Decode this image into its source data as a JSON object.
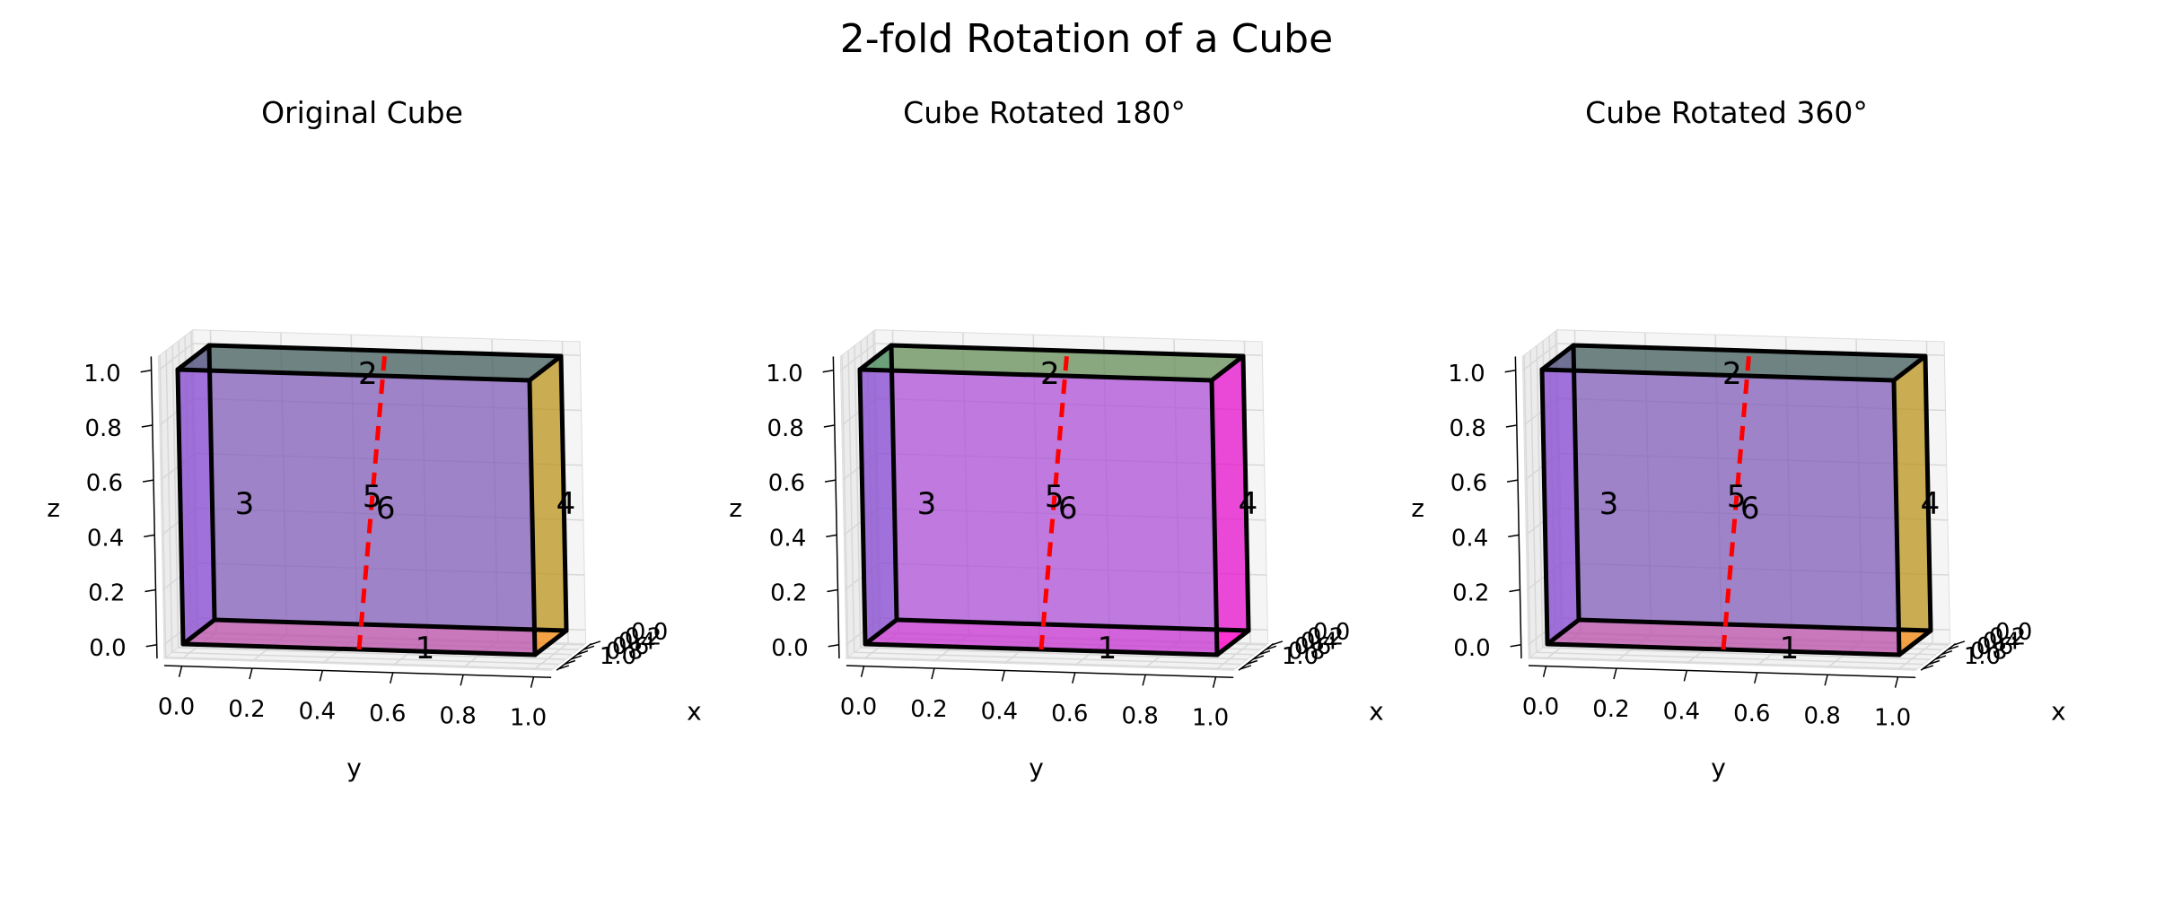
{
  "title": "2-fold Rotation of a Cube",
  "colors": {
    "red": "#d9534f",
    "orange": "#ffa500",
    "blue": "#3a3ac8",
    "teal": "#2f8080",
    "magenta": "#ff00c8",
    "green": "#4fae2a",
    "gray": "#5a5a5a",
    "violet": "#b05ad8",
    "axis_line": "#ff0000"
  },
  "panels": [
    {
      "title": "Original Cube",
      "faces": [
        {
          "label": "1",
          "color": "red"
        },
        {
          "label": "2",
          "color": "gray"
        },
        {
          "label": "3",
          "color": "blue"
        },
        {
          "label": "4",
          "color": "orange"
        },
        {
          "label": "5",
          "color": "violet"
        },
        {
          "label": "6",
          "color": "teal"
        }
      ]
    },
    {
      "title": "Cube Rotated 180°",
      "faces": [
        {
          "label": "1",
          "color": "magenta"
        },
        {
          "label": "2",
          "color": "green"
        },
        {
          "label": "3",
          "color": "blue"
        },
        {
          "label": "4",
          "color": "magenta"
        },
        {
          "label": "5",
          "color": "violet"
        },
        {
          "label": "6",
          "color": "violet"
        }
      ]
    },
    {
      "title": "Cube Rotated 360°",
      "faces": [
        {
          "label": "1",
          "color": "red"
        },
        {
          "label": "2",
          "color": "gray"
        },
        {
          "label": "3",
          "color": "blue"
        },
        {
          "label": "4",
          "color": "orange"
        },
        {
          "label": "5",
          "color": "violet"
        },
        {
          "label": "6",
          "color": "teal"
        }
      ]
    }
  ],
  "axes": {
    "x_label": "x",
    "y_label": "y",
    "z_label": "z",
    "x_ticks": [
      "0.0",
      "0.2",
      "0.4",
      "0.6",
      "0.8",
      "1.0"
    ],
    "y_ticks": [
      "0.0",
      "0.2",
      "0.4",
      "0.6",
      "0.8",
      "1.0"
    ],
    "z_ticks": [
      "0.0",
      "0.2",
      "0.4",
      "0.6",
      "0.8",
      "1.0"
    ]
  }
}
